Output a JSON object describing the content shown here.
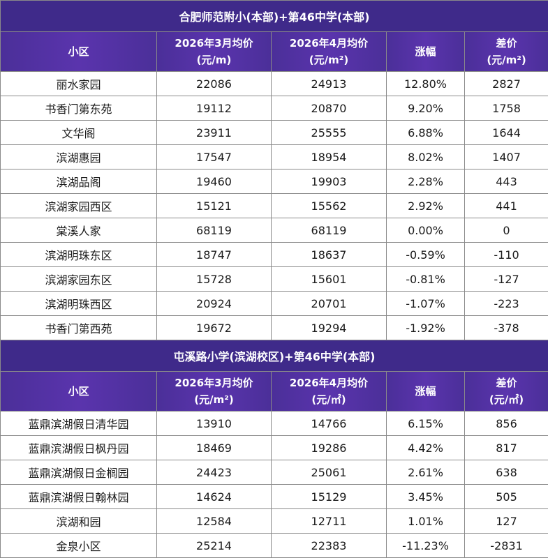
{
  "section1": {
    "title": "合肥师范附小(本部)+第46中学(本部)",
    "headers": {
      "name": "小区",
      "march_line1": "2026年3月均价",
      "march_line2": "(元/m)",
      "april_line1": "2026年4月均价",
      "april_line2": "(元/m²)",
      "change": "涨幅",
      "diff_line1": "差价",
      "diff_line2": "(元/m²)"
    },
    "rows": [
      {
        "name": "丽水家园",
        "march": "22086",
        "april": "24913",
        "change": "12.80%",
        "diff": "2827"
      },
      {
        "name": "书香门第东苑",
        "march": "19112",
        "april": "20870",
        "change": "9.20%",
        "diff": "1758"
      },
      {
        "name": "文华阁",
        "march": "23911",
        "april": "25555",
        "change": "6.88%",
        "diff": "1644"
      },
      {
        "name": "滨湖惠园",
        "march": "17547",
        "april": "18954",
        "change": "8.02%",
        "diff": "1407"
      },
      {
        "name": "滨湖品阁",
        "march": "19460",
        "april": "19903",
        "change": "2.28%",
        "diff": "443"
      },
      {
        "name": "滨湖家园西区",
        "march": "15121",
        "april": "15562",
        "change": "2.92%",
        "diff": "441"
      },
      {
        "name": "棠溪人家",
        "march": "68119",
        "april": "68119",
        "change": "0.00%",
        "diff": "0"
      },
      {
        "name": "滨湖明珠东区",
        "march": "18747",
        "april": "18637",
        "change": "-0.59%",
        "diff": "-110"
      },
      {
        "name": "滨湖家园东区",
        "march": "15728",
        "april": "15601",
        "change": "-0.81%",
        "diff": "-127"
      },
      {
        "name": "滨湖明珠西区",
        "march": "20924",
        "april": "20701",
        "change": "-1.07%",
        "diff": "-223"
      },
      {
        "name": "书香门第西苑",
        "march": "19672",
        "april": "19294",
        "change": "-1.92%",
        "diff": "-378"
      }
    ]
  },
  "section2": {
    "title": "屯溪路小学(滨湖校区)+第46中学(本部)",
    "headers": {
      "name": "小区",
      "march_line1": "2026年3月均价",
      "march_line2": "(元/m²)",
      "april_line1": "2026年4月均价",
      "april_line2": "(元/㎡)",
      "change": "涨幅",
      "diff_line1": "差价",
      "diff_line2": "(元/㎡)"
    },
    "rows": [
      {
        "name": "蓝鼎滨湖假日清华园",
        "march": "13910",
        "april": "14766",
        "change": "6.15%",
        "diff": "856"
      },
      {
        "name": "蓝鼎滨湖假日枫丹园",
        "march": "18469",
        "april": "19286",
        "change": "4.42%",
        "diff": "817"
      },
      {
        "name": "蓝鼎滨湖假日金榈园",
        "march": "24423",
        "april": "25061",
        "change": "2.61%",
        "diff": "638"
      },
      {
        "name": "蓝鼎滨湖假日翰林园",
        "march": "14624",
        "april": "15129",
        "change": "3.45%",
        "diff": "505"
      },
      {
        "name": "滨湖和园",
        "march": "12584",
        "april": "12711",
        "change": "1.01%",
        "diff": "127"
      },
      {
        "name": "金泉小区",
        "march": "25214",
        "april": "22383",
        "change": "-11.23%",
        "diff": "-2831"
      }
    ]
  }
}
